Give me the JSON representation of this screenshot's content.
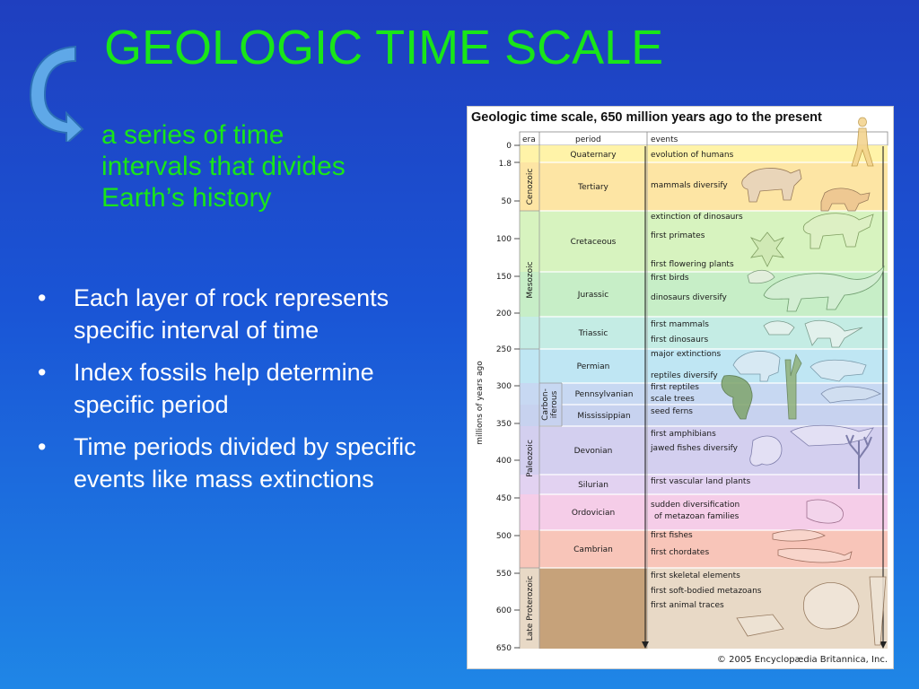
{
  "slide": {
    "title": "GEOLOGIC TIME SCALE",
    "definition": [
      "a series of time",
      "intervals that divides",
      "Earth’s history"
    ],
    "bullet_char": "•",
    "bullets": [
      "Each layer of rock represents specific interval of time",
      "Index fossils help determine specific period",
      "Time periods divided by specific events like mass extinctions"
    ],
    "colors": {
      "title": "#19e619",
      "bullet_text": "#ffffff",
      "bg_top": "#1f3fbf",
      "bg_bottom": "#1f86e6"
    }
  },
  "figure": {
    "title": "Geologic time scale, 650 million years ago to the present",
    "headers": {
      "era": "era",
      "period": "period",
      "events": "events"
    },
    "axis_label": "millions of years ago",
    "ticks": [
      "0",
      "1.8",
      "50",
      "100",
      "150",
      "200",
      "250",
      "300",
      "350",
      "400",
      "450",
      "500",
      "550",
      "600",
      "650"
    ],
    "eras": [
      "Cenozoic",
      "Mesozoic",
      "Paleozoic",
      "Late Proterozoic"
    ],
    "carboniferous": [
      "Carbon-",
      "iferous"
    ],
    "periods": [
      "Quaternary",
      "Tertiary",
      "Cretaceous",
      "Jurassic",
      "Triassic",
      "Permian",
      "Pennsylvanian",
      "Mississippian",
      "Devonian",
      "Silurian",
      "Ordovician",
      "Cambrian"
    ],
    "events": [
      "evolution of humans",
      "mammals diversify",
      "extinction of dinosaurs",
      "first primates",
      "first flowering plants",
      "first birds",
      "dinosaurs diversify",
      "first mammals",
      "first dinosaurs",
      "major extinctions",
      "reptiles diversify",
      "first reptiles",
      "scale trees",
      "seed ferns",
      "first amphibians",
      "jawed fishes diversify",
      "first vascular land plants",
      "sudden diversification",
      "of metazoan families",
      "first fishes",
      "first chordates",
      "first skeletal elements",
      "first soft-bodied metazoans",
      "first animal traces"
    ],
    "copyright": "© 2005 Encyclopædia Britannica, Inc."
  }
}
